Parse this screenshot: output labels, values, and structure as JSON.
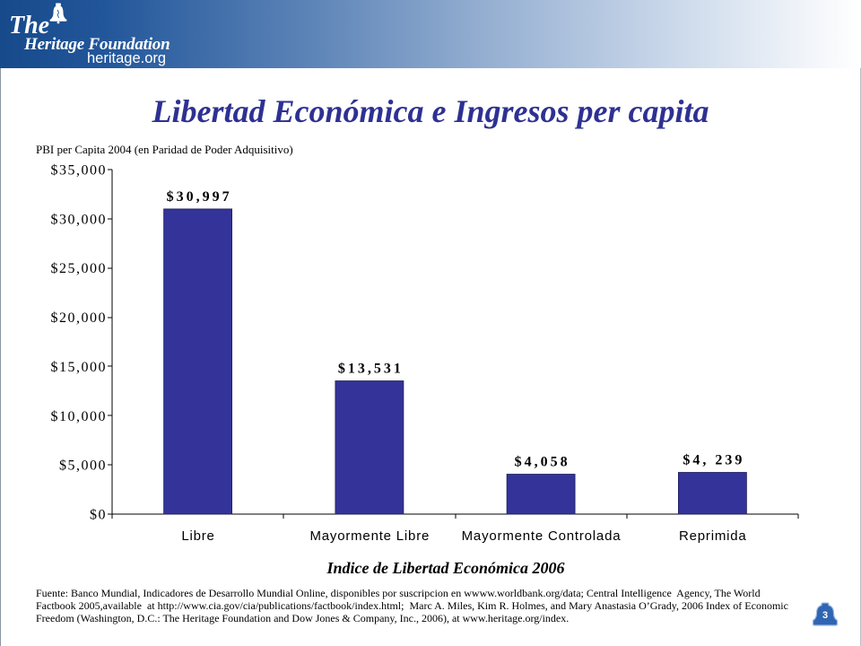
{
  "header": {
    "logo_line1": "The",
    "logo_line2": "Heritage Foundation",
    "logo_site": "heritage.org",
    "logo_icon": "liberty-bell-icon"
  },
  "chart_data": {
    "type": "bar",
    "title": "Libertad Económica e Ingresos per capita",
    "ylabel": "PBI per Capita 2004 (en Paridad de Poder Adquisitivo)",
    "xlabel": "Indice de Libertad Económica 2006",
    "categories": [
      "Libre",
      "Mayormente Libre",
      "Mayormente Controlada",
      "Reprimida"
    ],
    "values": [
      30997,
      13531,
      4058,
      4239
    ],
    "data_labels": [
      "$30,997",
      "$13,531",
      "$4,058",
      "$4, 239"
    ],
    "ylim": [
      0,
      35000
    ],
    "y_ticks": [
      0,
      5000,
      10000,
      15000,
      20000,
      25000,
      30000,
      35000
    ],
    "y_tick_labels": [
      "$0",
      "$5,000",
      "$10,000",
      "$15,000",
      "$20,000",
      "$25,000",
      "$30,000",
      "$35,000"
    ],
    "grid": false,
    "legend": "none",
    "bar_color": "#333399"
  },
  "footer": {
    "source_lines": [
      "Fuente: Banco Mundial, Indicadores de Desarrollo Mundial Online, disponibles por suscripcion en wwww.worldbank.org/data; Central Intelligence  Agency, The World",
      "Factbook 2005,available  at http://www.cia.gov/cia/publications/factbook/index.html;  Marc A. Miles, Kim R. Holmes, and Mary Anastasia O’Grady, 2006 Index of Economic",
      "Freedom (Washington, D.C.: The Heritage Foundation and Dow Jones & Company, Inc., 2006), at www.heritage.org/index."
    ],
    "page_number": "3",
    "page_badge_icon": "bell-icon"
  },
  "colors": {
    "title": "#2e3192",
    "header_dark": "#164a8a",
    "header_light": "#ffffff",
    "badge": "#2f66b3"
  }
}
